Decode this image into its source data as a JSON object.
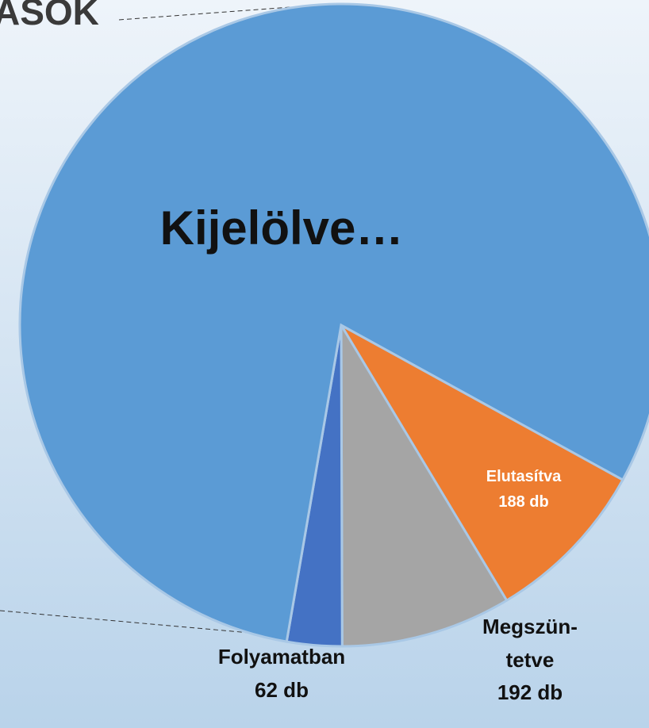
{
  "chart_data": {
    "type": "pie",
    "title": "ÁSOK",
    "categories": [
      "Elutasítva",
      "Megszün-\ntetve",
      "Folyamatban",
      "Kijelölve…"
    ],
    "values": [
      188,
      192,
      62,
      1800
    ],
    "value_labels": [
      "188 db",
      "192 db",
      "62 db",
      null
    ],
    "colors": [
      "#ED7D31",
      "#A5A5A5",
      "#4472C4",
      "#5B9BD5"
    ]
  }
}
